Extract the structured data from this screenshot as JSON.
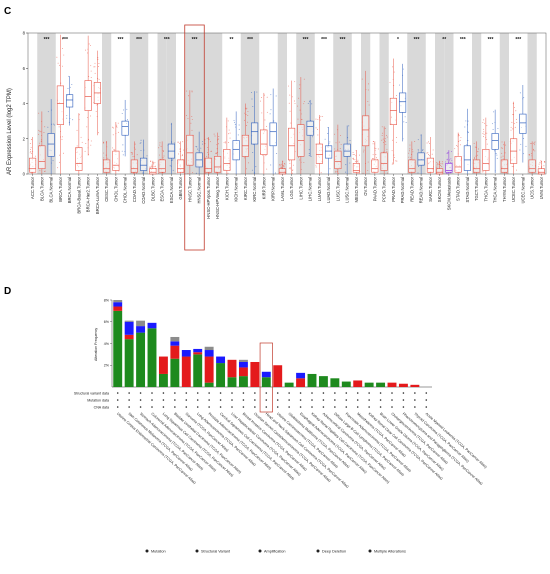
{
  "panel_c": {
    "letter": "C",
    "chart_data": {
      "type": "box",
      "ylabel": "AR Expression Level (log2 TPM)",
      "ylim": [
        0,
        8
      ],
      "yticks": [
        0,
        2,
        4,
        6,
        8
      ],
      "categories": [
        "ACC.Tumor",
        "BLCA.Tumor",
        "BLCA.Normal",
        "BRCA.Tumor",
        "BRCA.Normal",
        "BRCA-Basal.Tumor",
        "BRCA-Her2.Tumor",
        "BRCA-LumA.Tumor",
        "CESC.Tumor",
        "CHOL.Tumor",
        "CHOL.Normal",
        "COAD.Tumor",
        "COAD.Normal",
        "DLBC.Tumor",
        "ESCA.Tumor",
        "ESCA.Normal",
        "GBM.Tumor",
        "HNSC.Tumor",
        "HNSC.Normal",
        "HNSC-HPVpos.Tumor",
        "HNSC-HPVneg.Tumor",
        "KICH.Tumor",
        "KICH.Normal",
        "KIRC.Tumor",
        "KIRC.Normal",
        "KIRP.Tumor",
        "KIRP.Normal",
        "LAML.Tumor",
        "LGG.Tumor",
        "LIHC.Tumor",
        "LIHC.Normal",
        "LUAD.Tumor",
        "LUAD.Normal",
        "LUSC.Tumor",
        "LUSC.Normal",
        "MESO.Tumor",
        "OV.Tumor",
        "PAAD.Tumor",
        "PCPG.Tumor",
        "PRAD.Tumor",
        "PRAD.Normal",
        "READ.Tumor",
        "READ.Normal",
        "SARC.Tumor",
        "SKCM.Tumor",
        "SKCM.Metastasis",
        "STAD.Tumor",
        "STAD.Normal",
        "TGCT.Tumor",
        "THCA.Tumor",
        "THCA.Normal",
        "THYM.Tumor",
        "UCEC.Tumor",
        "UCEC.Normal",
        "UCS.Tumor",
        "UVM.Tumor"
      ],
      "medians": [
        0.3,
        0.7,
        1.7,
        4.0,
        4.2,
        0.6,
        4.4,
        4.6,
        0.3,
        0.5,
        2.7,
        0.3,
        0.5,
        0.1,
        0.3,
        1.3,
        0.3,
        1.2,
        0.8,
        0.3,
        0.4,
        0.6,
        1.4,
        1.6,
        2.4,
        1.7,
        2.4,
        0.1,
        1.6,
        1.9,
        2.7,
        1.1,
        1.3,
        0.7,
        1.3,
        0.2,
        2.5,
        0.3,
        0.6,
        3.6,
        4.1,
        0.3,
        0.8,
        0.3,
        0.1,
        0.2,
        0.4,
        0.8,
        0.3,
        0.6,
        1.9,
        0.3,
        1.3,
        2.9,
        0.3,
        0.1
      ],
      "q1": [
        0.1,
        0.3,
        1.0,
        2.8,
        3.8,
        0.2,
        3.6,
        4.0,
        0.1,
        0.2,
        2.2,
        0.1,
        0.2,
        0.0,
        0.1,
        0.9,
        0.1,
        0.5,
        0.4,
        0.1,
        0.1,
        0.2,
        0.8,
        1.0,
        1.7,
        1.1,
        1.6,
        0.0,
        0.8,
        1.0,
        2.2,
        0.6,
        0.9,
        0.3,
        1.0,
        0.1,
        1.6,
        0.1,
        0.2,
        2.8,
        3.5,
        0.1,
        0.5,
        0.1,
        0.0,
        0.1,
        0.1,
        0.2,
        0.1,
        0.2,
        1.4,
        0.1,
        0.6,
        2.3,
        0.1,
        0.0
      ],
      "q3": [
        0.9,
        1.6,
        2.3,
        5.0,
        4.5,
        1.5,
        5.3,
        5.2,
        0.8,
        1.3,
        3.0,
        0.8,
        0.9,
        0.3,
        0.8,
        1.7,
        0.8,
        2.2,
        1.2,
        0.9,
        1.0,
        1.4,
        1.9,
        2.2,
        2.9,
        2.5,
        2.9,
        0.3,
        2.6,
        2.8,
        3.0,
        1.7,
        1.6,
        1.3,
        1.7,
        0.6,
        3.3,
        0.8,
        1.2,
        4.3,
        4.6,
        0.8,
        1.2,
        0.9,
        0.3,
        0.6,
        1.0,
        1.6,
        0.8,
        1.4,
        2.3,
        0.8,
        2.0,
        3.4,
        0.8,
        0.3
      ],
      "significance": [
        {
          "category": "BLCA.Normal",
          "label": "***"
        },
        {
          "category": "BRCA.Normal",
          "label": "***"
        },
        {
          "category": "CHOL.Normal",
          "label": "***"
        },
        {
          "category": "COAD.Normal",
          "label": "***"
        },
        {
          "category": "ESCA.Normal",
          "label": "***"
        },
        {
          "category": "HNSC.Normal",
          "label": "***"
        },
        {
          "category": "KICH.Normal",
          "label": "**"
        },
        {
          "category": "KIRC.Normal",
          "label": "***"
        },
        {
          "category": "LIHC.Normal",
          "label": "***"
        },
        {
          "category": "LUAD.Normal",
          "label": "***"
        },
        {
          "category": "LUSC.Normal",
          "label": "***"
        },
        {
          "category": "PRAD.Normal",
          "label": "*"
        },
        {
          "category": "READ.Normal",
          "label": "***"
        },
        {
          "category": "SKCM.Metastasis",
          "label": "**"
        },
        {
          "category": "STAD.Normal",
          "label": "***"
        },
        {
          "category": "THCA.Normal",
          "label": "***"
        },
        {
          "category": "UCEC.Normal",
          "label": "***"
        }
      ],
      "highlight_categories": [
        "HNSC.Tumor",
        "HNSC.Normal"
      ],
      "colors": {
        "tumor": "#e8584a",
        "normal": "#2f5fbd",
        "metastasis": "#8a2be2",
        "band": "#d9d9d9"
      }
    }
  },
  "panel_d": {
    "letter": "D",
    "chart_data": {
      "type": "bar",
      "stacked": true,
      "ylabel": "Alteration Frequency",
      "ylim": [
        0,
        8
      ],
      "yticks": [
        "8%",
        "6%",
        "4%",
        "2%"
      ],
      "track_labels": [
        "Structural variant data",
        "Mutation data",
        "CNA data"
      ],
      "categories": [
        "Uterine Corpus Endometrial Carcinoma (TCGA, PanCancer Atlas)",
        "Skin Cutaneous Melanoma (TCGA, PanCancer Atlas)",
        "Stomach Adenocarcinoma (TCGA, PanCancer Atlas)",
        "Colorectal Adenocarcinoma (TCGA, PanCancer Atlas)",
        "Lung Squamous Cell Carcinoma (TCGA, PanCancer Atlas)",
        "Bladder Urothelial Carcinoma (TCGA, PanCancer Atlas)",
        "Sarcoma (TCGA, PanCancer Atlas)",
        "Lung Adenocarcinoma (TCGA, PanCancer Atlas)",
        "Prostate Adenocarcinoma (TCGA, PanCancer Atlas)",
        "Cervical Squamous Cell Carcinoma (TCGA, PanCancer Atlas)",
        "Liver Hepatocellular Carcinoma (TCGA, PanCancer Atlas)",
        "Breast Invasive Carcinoma (TCGA, PanCancer Atlas)",
        "Ovarian Serous Cystadenocarcinoma (TCGA, PanCancer Atlas)",
        "Head and Neck Squamous Cell Carcinoma (TCGA, PanCancer Atlas)",
        "Uterine Carcinosarcoma (TCGA, PanCancer Atlas)",
        "Glioblastoma Multiforme (TCGA, PanCancer Atlas)",
        "Esophageal Adenocarcinoma (TCGA, PanCancer Atlas)",
        "Kidney Renal Papillary Cell Carcinoma (TCGA, PanCancer Atlas)",
        "Adrenocortical Carcinoma (TCGA, PanCancer Atlas)",
        "Diffuse Large B-Cell Lymphoma (TCGA, PanCancer Atlas)",
        "Pancreatic Adenocarcinoma (TCGA, PanCancer Atlas)",
        "Mesothelioma (TCGA, PanCancer Atlas)",
        "Kidney Renal Clear Cell Carcinoma (TCGA, PanCancer Atlas)",
        "Brain Lower Grade Glioma (TCGA, PanCancer Atlas)",
        "Cholangiocarcinoma (TCGA, PanCancer Atlas)",
        "Pheochromocytoma and Paraganglioma (TCGA, PanCancer Atlas)",
        "Thyroid Carcinoma (TCGA, PanCancer Atlas)",
        "Acute Myeloid Leukemia (TCGA, PanCancer Atlas)"
      ],
      "series": [
        {
          "name": "Mutation",
          "color": "#1e8a1e",
          "values": [
            7.0,
            4.4,
            5.0,
            5.4,
            1.2,
            2.6,
            0.0,
            3.0,
            0.4,
            2.2,
            0.9,
            1.0,
            0.0,
            0.9,
            0.0,
            0.4,
            0.0,
            1.2,
            1.0,
            0.8,
            0.5,
            0.0,
            0.4,
            0.4,
            0.0,
            0.0,
            0.0,
            0.0
          ]
        },
        {
          "name": "Structural Variant",
          "color": "#8a2be2",
          "values": [
            0.0,
            0.0,
            0.0,
            0.0,
            0.0,
            0.0,
            0.0,
            0.0,
            0.0,
            0.0,
            0.0,
            0.0,
            0.0,
            0.0,
            0.0,
            0.0,
            0.0,
            0.0,
            0.0,
            0.0,
            0.0,
            0.0,
            0.0,
            0.0,
            0.0,
            0.0,
            0.0,
            0.0
          ]
        },
        {
          "name": "Amplification",
          "color": "#e41a1c",
          "values": [
            0.4,
            0.4,
            0.0,
            0.0,
            1.6,
            1.2,
            2.8,
            0.2,
            2.4,
            0.0,
            1.6,
            0.8,
            2.3,
            0.0,
            2.0,
            0.0,
            0.8,
            0.0,
            0.0,
            0.0,
            0.0,
            0.6,
            0.0,
            0.0,
            0.4,
            0.3,
            0.2,
            0.0
          ]
        },
        {
          "name": "Deep Deletion",
          "color": "#1a1aff",
          "values": [
            0.4,
            1.2,
            0.6,
            0.5,
            0.0,
            0.4,
            0.6,
            0.3,
            0.6,
            0.6,
            0.0,
            0.5,
            0.0,
            0.5,
            0.0,
            0.0,
            0.5,
            0.0,
            0.0,
            0.0,
            0.0,
            0.0,
            0.0,
            0.0,
            0.0,
            0.0,
            0.0,
            0.0
          ]
        },
        {
          "name": "Multiple Alterations",
          "color": "#8c8c8c",
          "values": [
            0.2,
            0.1,
            0.5,
            0.0,
            0.0,
            0.4,
            0.0,
            0.0,
            0.3,
            0.0,
            0.0,
            0.2,
            0.0,
            0.0,
            0.0,
            0.0,
            0.0,
            0.0,
            0.0,
            0.0,
            0.0,
            0.0,
            0.0,
            0.0,
            0.0,
            0.0,
            0.0,
            0.0
          ]
        }
      ],
      "highlight_category": "Head and Neck Squamous Cell Carcinoma (TCGA, PanCancer Atlas)",
      "legend_placement": "bottom"
    }
  },
  "legend": {
    "items": [
      {
        "label": "Mutation",
        "color": "#1e8a1e"
      },
      {
        "label": "Structural Variant",
        "color": "#8a2be2"
      },
      {
        "label": "Amplification",
        "color": "#e41a1c"
      },
      {
        "label": "Deep Deletion",
        "color": "#1a1aff"
      },
      {
        "label": "Multiple Alterations",
        "color": "#8c8c8c"
      }
    ]
  }
}
